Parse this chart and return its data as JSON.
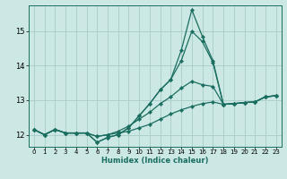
{
  "xlabel": "Humidex (Indice chaleur)",
  "ylabel": "",
  "bg_color": "#cce8e5",
  "grid_color": "#a8ccc9",
  "line_color": "#1a6e60",
  "xlim": [
    -0.5,
    23.5
  ],
  "ylim": [
    11.65,
    15.75
  ],
  "yticks": [
    12,
    13,
    14,
    15
  ],
  "xticks": [
    0,
    1,
    2,
    3,
    4,
    5,
    6,
    7,
    8,
    9,
    10,
    11,
    12,
    13,
    14,
    15,
    16,
    17,
    18,
    19,
    20,
    21,
    22,
    23
  ],
  "lines": [
    {
      "x": [
        0,
        1,
        2,
        3,
        4,
        5,
        6,
        7,
        8,
        9,
        10,
        11,
        12,
        13,
        14,
        15,
        16,
        17,
        18,
        19,
        20,
        21,
        22,
        23
      ],
      "y": [
        12.15,
        12.0,
        12.15,
        12.05,
        12.05,
        12.05,
        11.95,
        12.0,
        12.05,
        12.1,
        12.2,
        12.3,
        12.45,
        12.6,
        12.72,
        12.82,
        12.9,
        12.95,
        12.88,
        12.9,
        12.93,
        12.95,
        13.1,
        13.13
      ]
    },
    {
      "x": [
        0,
        1,
        2,
        3,
        4,
        5,
        6,
        7,
        8,
        9,
        10,
        11,
        12,
        13,
        14,
        15,
        16,
        17,
        18,
        19,
        20,
        21,
        22,
        23
      ],
      "y": [
        12.15,
        12.0,
        12.15,
        12.05,
        12.05,
        12.05,
        11.95,
        12.0,
        12.1,
        12.25,
        12.45,
        12.65,
        12.9,
        13.1,
        13.35,
        13.55,
        13.45,
        13.4,
        12.88,
        12.9,
        12.93,
        12.95,
        13.1,
        13.13
      ]
    },
    {
      "x": [
        0,
        1,
        2,
        3,
        4,
        5,
        6,
        7,
        8,
        9,
        10,
        11,
        12,
        13,
        14,
        15,
        16,
        17,
        18,
        19,
        20,
        21,
        22,
        23
      ],
      "y": [
        12.15,
        12.0,
        12.15,
        12.05,
        12.05,
        12.05,
        11.78,
        11.92,
        12.0,
        12.2,
        12.55,
        12.9,
        13.3,
        13.6,
        14.15,
        15.0,
        14.7,
        14.1,
        12.88,
        12.9,
        12.93,
        12.95,
        13.1,
        13.13
      ]
    },
    {
      "x": [
        0,
        1,
        2,
        3,
        4,
        5,
        6,
        7,
        8,
        9,
        10,
        11,
        12,
        13,
        14,
        15,
        16,
        17,
        18,
        19,
        20,
        21,
        22,
        23
      ],
      "y": [
        12.15,
        12.0,
        12.15,
        12.05,
        12.05,
        12.05,
        11.78,
        11.92,
        12.0,
        12.2,
        12.55,
        12.9,
        13.3,
        13.6,
        14.45,
        15.62,
        14.85,
        14.15,
        12.88,
        12.9,
        12.93,
        12.95,
        13.1,
        13.13
      ]
    }
  ]
}
